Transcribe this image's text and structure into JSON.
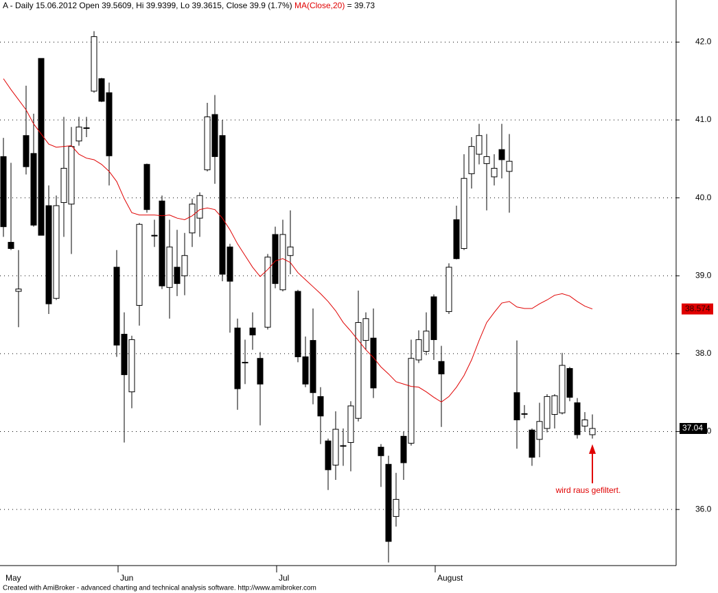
{
  "chart_data": {
    "type": "candlestick",
    "title": "A - Daily 15.06.2012 Open 39.5609, Hi 39.9399, Lo 39.3615, Close 39.9 (1.7%)",
    "ma_header_value": "= 39.73",
    "annotation": "wird raus gefiltert.",
    "footer": "Created with AmiBroker - advanced charting and technical analysis software. http://www.amibroker.com",
    "categories": [
      "May",
      null,
      null,
      null,
      null,
      null,
      null,
      null,
      null,
      null,
      null,
      null,
      null,
      null,
      null,
      "Jun",
      null,
      null,
      null,
      null,
      null,
      null,
      null,
      null,
      null,
      null,
      null,
      null,
      null,
      null,
      null,
      null,
      null,
      null,
      null,
      null,
      "Jul",
      null,
      null,
      null,
      null,
      null,
      null,
      null,
      null,
      null,
      null,
      null,
      null,
      null,
      null,
      null,
      null,
      null,
      null,
      null,
      null,
      "August",
      null,
      null,
      null,
      null,
      null,
      null,
      null,
      null,
      null,
      null,
      null,
      null,
      null,
      null,
      null,
      null,
      null,
      null,
      null,
      null,
      null
    ],
    "series": [
      {
        "name": "A",
        "up_color": "#ffffff",
        "down_color": "#000000",
        "open": [
          40.53,
          39.43,
          38.8,
          40.8,
          40.57,
          41.79,
          39.9,
          38.71,
          39.94,
          39.92,
          40.73,
          40.9,
          41.37,
          41.53,
          41.35,
          39.11,
          38.25,
          37.51,
          38.62,
          40.43,
          39.52,
          39.96,
          38.85,
          39.11,
          39.0,
          39.55,
          39.74,
          40.36,
          41.07,
          40.8,
          39.37,
          38.33,
          37.89,
          38.33,
          37.94,
          38.34,
          39.53,
          38.82,
          39.26,
          38.8,
          37.96,
          38.17,
          37.45,
          36.88,
          36.57,
          36.82,
          36.86,
          37.17,
          38.17,
          38.2,
          36.8,
          36.58,
          35.91,
          36.94,
          36.85,
          37.92,
          38.03,
          38.73,
          37.9,
          38.54,
          39.72,
          39.35,
          40.31,
          40.56,
          40.44,
          40.27,
          40.62,
          40.34,
          37.5,
          37.23,
          37.02,
          36.9,
          37.04,
          37.22,
          37.24,
          37.81,
          37.37,
          37.07,
          36.96
        ],
        "high": [
          40.77,
          40.45,
          39.33,
          41.44,
          41.08,
          41.79,
          40.16,
          40.03,
          41.04,
          40.91,
          41.04,
          41.04,
          42.14,
          41.54,
          41.48,
          39.33,
          38.53,
          38.23,
          39.68,
          40.44,
          39.72,
          40.03,
          39.72,
          39.59,
          39.55,
          39.99,
          40.07,
          41.22,
          41.32,
          41.0,
          39.41,
          38.45,
          38.18,
          38.53,
          38.02,
          39.28,
          39.63,
          39.72,
          39.84,
          38.82,
          38.22,
          38.58,
          37.57,
          36.91,
          37.26,
          37.04,
          37.39,
          38.81,
          38.53,
          38.58,
          36.84,
          36.69,
          36.47,
          37.0,
          38.18,
          38.3,
          38.53,
          38.76,
          38.1,
          39.16,
          39.9,
          40.56,
          40.78,
          40.95,
          40.82,
          40.56,
          40.95,
          40.82,
          38.17,
          37.34,
          37.04,
          37.37,
          37.48,
          37.48,
          38.01,
          37.83,
          37.43,
          37.25,
          37.22
        ],
        "low": [
          39.5,
          39.33,
          38.34,
          40.3,
          39.63,
          39.52,
          38.51,
          38.69,
          39.5,
          39.28,
          40.67,
          40.78,
          41.35,
          41.23,
          40.16,
          37.96,
          36.86,
          37.3,
          38.36,
          39.81,
          39.37,
          38.83,
          38.45,
          38.74,
          38.75,
          39.37,
          39.5,
          40.34,
          40.18,
          38.93,
          38.27,
          37.28,
          37.61,
          38.05,
          37.08,
          38.31,
          38.84,
          38.8,
          39.02,
          37.89,
          37.57,
          37.35,
          36.84,
          36.25,
          36.38,
          36.56,
          36.49,
          37.13,
          38.05,
          37.43,
          36.29,
          35.32,
          35.78,
          36.38,
          36.82,
          37.88,
          37.98,
          37.92,
          37.06,
          38.51,
          39.21,
          39.33,
          40.12,
          40.43,
          39.84,
          40.16,
          40.25,
          39.81,
          36.78,
          37.17,
          36.56,
          36.67,
          36.99,
          37.04,
          37.22,
          37.39,
          36.91,
          37.0,
          36.91
        ],
        "close": [
          39.63,
          39.35,
          38.83,
          40.4,
          39.65,
          39.52,
          38.64,
          39.9,
          40.38,
          40.66,
          40.91,
          40.9,
          42.07,
          41.24,
          40.54,
          38.11,
          37.73,
          38.18,
          39.66,
          39.85,
          39.51,
          38.87,
          39.37,
          38.9,
          39.26,
          39.92,
          40.03,
          41.04,
          40.53,
          39.02,
          38.93,
          37.55,
          37.89,
          38.24,
          37.61,
          39.24,
          38.9,
          39.53,
          39.37,
          37.96,
          37.61,
          37.5,
          37.2,
          36.51,
          37.03,
          36.82,
          37.33,
          38.4,
          38.45,
          37.56,
          36.69,
          35.59,
          36.13,
          36.6,
          37.94,
          38.18,
          38.29,
          38.18,
          37.74,
          39.11,
          39.22,
          40.25,
          40.66,
          40.8,
          40.53,
          40.38,
          40.49,
          40.47,
          37.15,
          37.23,
          36.67,
          37.13,
          37.45,
          37.46,
          37.85,
          37.44,
          36.96,
          37.15,
          37.04
        ]
      },
      {
        "name": "MA(Close,20)",
        "type": "line",
        "color": "#e00000",
        "values": [
          41.53,
          41.39,
          41.26,
          41.13,
          40.95,
          40.82,
          40.69,
          40.65,
          40.66,
          40.67,
          40.56,
          40.51,
          40.49,
          40.43,
          40.34,
          40.21,
          39.99,
          39.81,
          39.78,
          39.78,
          39.78,
          39.77,
          39.78,
          39.74,
          39.72,
          39.77,
          39.85,
          39.87,
          39.85,
          39.74,
          39.59,
          39.41,
          39.26,
          39.11,
          38.99,
          39.08,
          39.19,
          39.22,
          39.17,
          39.04,
          38.95,
          38.86,
          38.77,
          38.67,
          38.55,
          38.4,
          38.29,
          38.17,
          38.05,
          37.95,
          37.83,
          37.74,
          37.64,
          37.61,
          37.58,
          37.57,
          37.51,
          37.44,
          37.38,
          37.45,
          37.57,
          37.72,
          37.92,
          38.17,
          38.4,
          38.53,
          38.65,
          38.67,
          38.6,
          38.58,
          38.58,
          38.64,
          38.69,
          38.75,
          38.77,
          38.74,
          38.67,
          38.61,
          38.574
        ]
      }
    ],
    "ylim": [
      35.28,
      42.54
    ],
    "yticks": [
      {
        "value": 36,
        "label": "36.0"
      },
      {
        "value": 37,
        "label": "37.0"
      },
      {
        "value": 38,
        "label": "38.0"
      },
      {
        "value": 39,
        "label": "39.0"
      },
      {
        "value": 40,
        "label": "40.0"
      },
      {
        "value": 41,
        "label": "41.0"
      },
      {
        "value": 42,
        "label": "42.0"
      }
    ],
    "grid": true
  }
}
